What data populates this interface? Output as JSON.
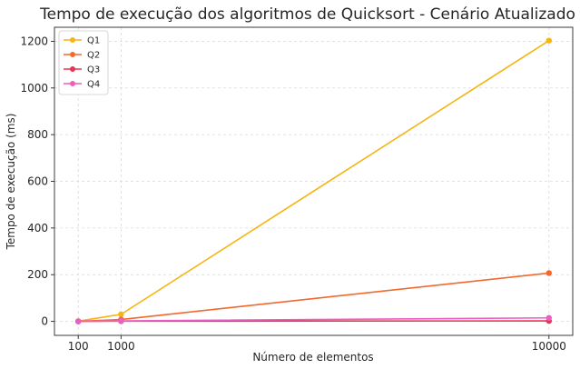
{
  "chart_data": {
    "type": "line",
    "title": "Tempo de execução dos algoritmos de Quicksort - Cenário Atualizado",
    "xlabel": "Número de elementos",
    "ylabel": "Tempo de execução (ms)",
    "x": [
      100,
      1000,
      10000
    ],
    "xticks": [
      "100",
      "1000",
      "10000"
    ],
    "yticks": [
      "0",
      "200",
      "400",
      "600",
      "800",
      "1000",
      "1200"
    ],
    "xlim": [
      -400,
      10500
    ],
    "ylim": [
      -60,
      1260
    ],
    "grid": true,
    "legend_position": "top-left",
    "series": [
      {
        "name": "Q1",
        "color": "#f5b514",
        "values": [
          1,
          30,
          1203
        ]
      },
      {
        "name": "Q2",
        "color": "#f2692e",
        "values": [
          0,
          8,
          207
        ]
      },
      {
        "name": "Q3",
        "color": "#e8344f",
        "values": [
          0,
          1,
          2
        ]
      },
      {
        "name": "Q4",
        "color": "#ea5fc2",
        "values": [
          0,
          2,
          15
        ]
      }
    ]
  }
}
